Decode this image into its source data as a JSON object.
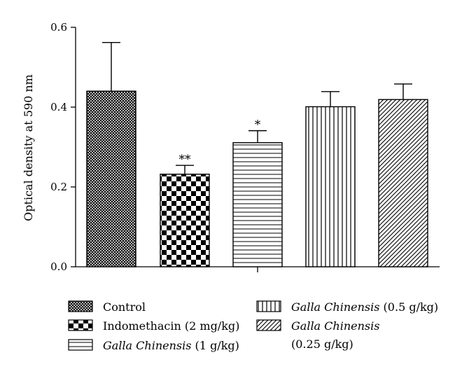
{
  "chart_data": {
    "type": "bar",
    "ylabel": "Optical density at 590 nm",
    "ylim": [
      0,
      0.6
    ],
    "yticks": [
      "0.0",
      "0.2",
      "0.4",
      "0.6"
    ],
    "grid": false,
    "legend_position": "bottom",
    "categories": [
      {
        "plain": "Control",
        "italic": "",
        "suffix": ""
      },
      {
        "plain": "Indomethacin (2 mg/kg)",
        "italic": "",
        "suffix": ""
      },
      {
        "plain": "",
        "italic": "Galla Chinensis",
        "suffix": " (1 g/kg)"
      },
      {
        "plain": "",
        "italic": "Galla Chinensis",
        "suffix": " (0.5 g/kg)"
      },
      {
        "plain": "",
        "italic": "Galla Chinensis",
        "suffix": "(0.25 g/kg)"
      }
    ],
    "values": [
      0.44,
      0.232,
      0.311,
      0.401,
      0.419
    ],
    "errors": [
      0.122,
      0.022,
      0.03,
      0.038,
      0.039
    ],
    "significance": [
      "",
      "**",
      "*",
      "",
      ""
    ],
    "patterns": [
      "crosshatch",
      "checkerboard",
      "horizontal-lines",
      "vertical-lines",
      "diagonal-lines"
    ]
  }
}
